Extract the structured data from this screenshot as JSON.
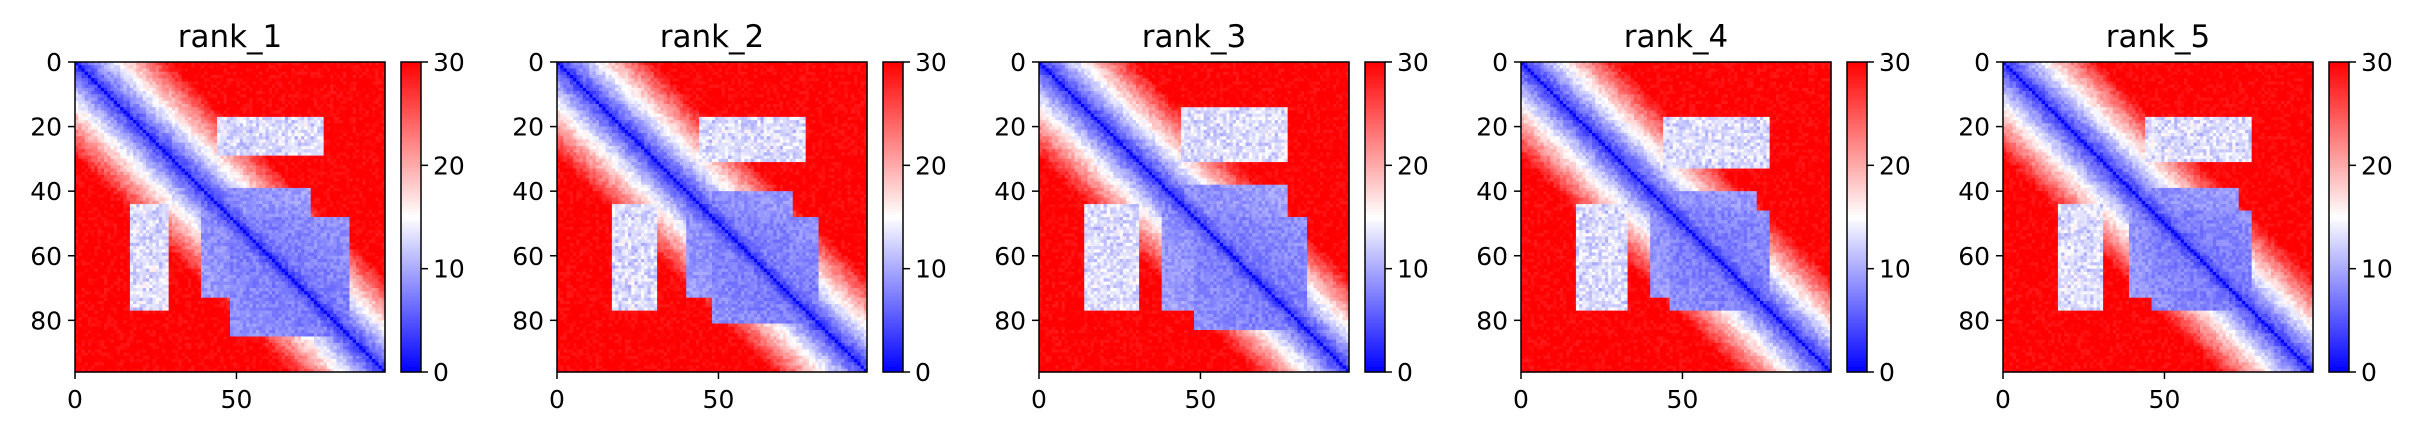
{
  "chart_data": [
    {
      "type": "heatmap",
      "title": "rank_1",
      "n": 96,
      "xlim": [
        0,
        96
      ],
      "ylim": [
        96,
        0
      ],
      "xticks": [
        0,
        50
      ],
      "yticks": [
        0,
        20,
        40,
        60,
        80
      ],
      "colorbar": {
        "range": [
          0,
          30
        ],
        "ticks": [
          0,
          10,
          20,
          30
        ],
        "colormap": "bwr",
        "low": "#0000ff",
        "mid": "#ffffff",
        "high": "#ff0000"
      },
      "features": {
        "block": [
          39,
          48,
          72,
          84
        ],
        "blockFuzzy": [
          17,
          28
        ],
        "hairpin": [
          22,
          28,
          44,
          62
        ]
      }
    },
    {
      "type": "heatmap",
      "title": "rank_2",
      "n": 96,
      "xlim": [
        0,
        96
      ],
      "ylim": [
        96,
        0
      ],
      "xticks": [
        0,
        50
      ],
      "yticks": [
        0,
        20,
        40,
        60,
        80
      ],
      "colorbar": {
        "range": [
          0,
          30
        ],
        "ticks": [
          0,
          10,
          20,
          30
        ],
        "colormap": "bwr",
        "low": "#0000ff",
        "mid": "#ffffff",
        "high": "#ff0000"
      },
      "features": {
        "block": [
          40,
          48,
          72,
          80
        ],
        "blockFuzzy": [
          17,
          30
        ],
        "hairpin": [
          22,
          28,
          44,
          62
        ]
      }
    },
    {
      "type": "heatmap",
      "title": "rank_3",
      "n": 96,
      "xlim": [
        0,
        96
      ],
      "ylim": [
        96,
        0
      ],
      "xticks": [
        0,
        50
      ],
      "yticks": [
        0,
        20,
        40,
        60,
        80
      ],
      "colorbar": {
        "range": [
          0,
          30
        ],
        "ticks": [
          0,
          10,
          20,
          30
        ],
        "colormap": "bwr",
        "low": "#0000ff",
        "mid": "#ffffff",
        "high": "#ff0000"
      },
      "features": {
        "block": [
          38,
          48,
          76,
          82
        ],
        "blockFuzzy": [
          14,
          30
        ],
        "hairpin": [
          22,
          28,
          44,
          66
        ]
      }
    },
    {
      "type": "heatmap",
      "title": "rank_4",
      "n": 96,
      "xlim": [
        0,
        96
      ],
      "ylim": [
        96,
        0
      ],
      "xticks": [
        0,
        50
      ],
      "yticks": [
        0,
        20,
        40,
        60,
        80
      ],
      "colorbar": {
        "range": [
          0,
          30
        ],
        "ticks": [
          0,
          10,
          20,
          30
        ],
        "colormap": "bwr",
        "low": "#0000ff",
        "mid": "#ffffff",
        "high": "#ff0000"
      },
      "features": {
        "block": [
          40,
          46,
          72,
          76
        ],
        "blockFuzzy": [
          17,
          32
        ],
        "hairpin": [
          22,
          28,
          48,
          62
        ]
      }
    },
    {
      "type": "heatmap",
      "title": "rank_5",
      "n": 96,
      "xlim": [
        0,
        96
      ],
      "ylim": [
        96,
        0
      ],
      "xticks": [
        0,
        50
      ],
      "yticks": [
        0,
        20,
        40,
        60,
        80
      ],
      "colorbar": {
        "range": [
          0,
          30
        ],
        "ticks": [
          0,
          10,
          20,
          30
        ],
        "colormap": "bwr",
        "low": "#0000ff",
        "mid": "#ffffff",
        "high": "#ff0000"
      },
      "features": {
        "block": [
          39,
          46,
          72,
          76
        ],
        "blockFuzzy": [
          17,
          30
        ],
        "hairpin": [
          22,
          28,
          48,
          62
        ]
      }
    }
  ]
}
